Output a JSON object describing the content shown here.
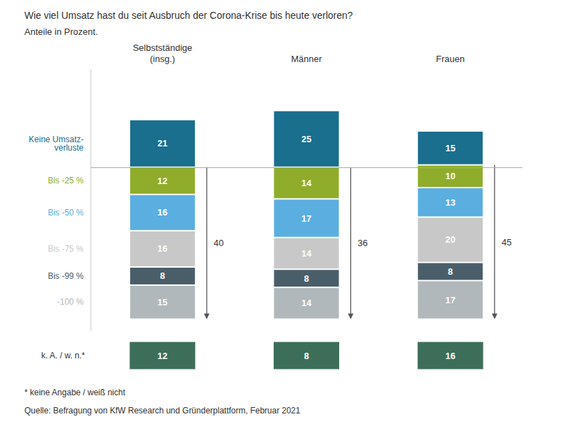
{
  "chart_data": {
    "type": "bar",
    "title": "Wie viel Umsatz hast du seit Ausbruch der Corona-Krise bis heute verloren?",
    "subtitle": "Anteile in Prozent.",
    "categories": [
      "Selbstständige\n(insg.)",
      "Männer",
      "Frauen"
    ],
    "series": [
      {
        "name": "-100 %",
        "color": "#b0b8bc",
        "values": [
          15,
          14,
          17
        ]
      },
      {
        "name": "Bis -99 %",
        "color": "#4a5e6a",
        "values": [
          8,
          8,
          8
        ]
      },
      {
        "name": "Bis -75 %",
        "color": "#c8c8c8",
        "values": [
          16,
          14,
          20
        ]
      },
      {
        "name": "Bis -50 %",
        "color": "#5aafe0",
        "values": [
          16,
          17,
          13
        ]
      },
      {
        "name": "Bis -25 %",
        "color": "#8fad2a",
        "values": [
          12,
          14,
          10
        ]
      },
      {
        "name": "Keine Umsatz-\nverluste",
        "color": "#1a6e8e",
        "values": [
          21,
          25,
          15
        ]
      }
    ],
    "stacked": true,
    "data_labels": true,
    "ylim": [
      -5,
      110
    ],
    "tick_labels": false,
    "grid": false,
    "reference_line": 67,
    "loss_arrows": [
      {
        "from": 67,
        "to": 0,
        "value": 40
      },
      {
        "from": 67,
        "to": 0,
        "value": 36
      },
      {
        "from": 68,
        "to": 0,
        "value": 45
      }
    ],
    "ka": {
      "name": "k. A. / w. n.*",
      "color": "#3d6e5a",
      "values": [
        12,
        8,
        16
      ]
    },
    "footnote": "* keine Angabe / weiß nicht",
    "source": "Quelle: Befragung von KfW Research und Gründerplattform, Februar 2021"
  }
}
